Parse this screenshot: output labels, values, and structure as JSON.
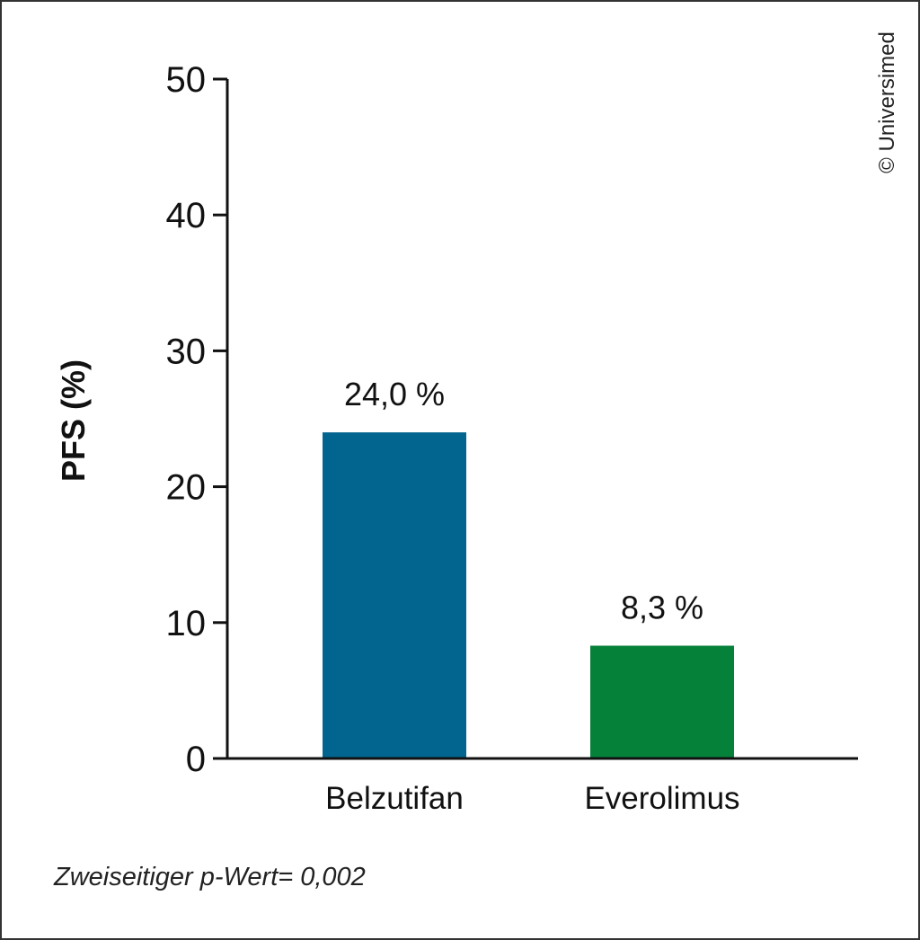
{
  "chart_data": {
    "type": "bar",
    "categories": [
      "Belzutifan",
      "Everolimus"
    ],
    "values": [
      24.0,
      8.3
    ],
    "data_labels": [
      "24,0 %",
      "8,3 %"
    ],
    "colors": [
      "#02658f",
      "#06813a"
    ],
    "ylabel": "PFS (%)",
    "xlabel": "",
    "ylim": [
      0,
      50
    ],
    "yticks": [
      0,
      10,
      20,
      30,
      40,
      50
    ],
    "grid": false
  },
  "footnote": "Zweiseitiger p-Wert= 0,002",
  "copyright": "© Universimed"
}
